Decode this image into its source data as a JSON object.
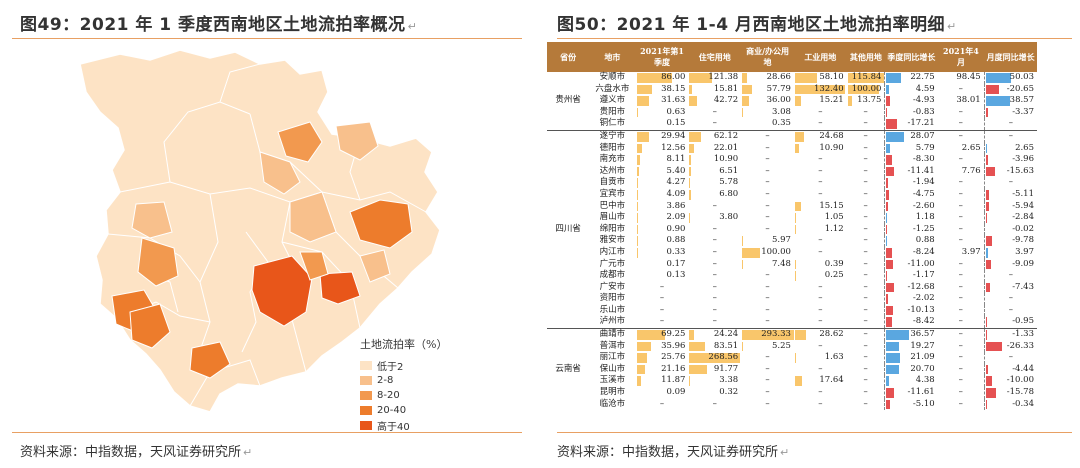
{
  "left": {
    "title": "图49：2021 年 1 季度西南地区土地流拍率概况",
    "source": "资料来源：中指数据，天风证券研究所",
    "legend_title": "土地流拍率（%）",
    "legend": [
      {
        "label": "低于2",
        "color": "#fde3c5"
      },
      {
        "label": "2-8",
        "color": "#f8c08c"
      },
      {
        "label": "8-20",
        "color": "#f2994f"
      },
      {
        "label": "20-40",
        "color": "#ed7c2c"
      },
      {
        "label": "高于40",
        "color": "#e8561a"
      }
    ]
  },
  "right": {
    "title": "图50：2021 年 1-4 月西南地区土地流拍率明细",
    "source": "资料来源：中指数据，天风证券研究所",
    "headers": [
      "省份",
      "地市",
      "2021年第1季度",
      "住宅用地",
      "商业/办公用地",
      "工业用地",
      "其他用地",
      "季度同比增长",
      "2021年4月",
      "月度同比增长"
    ],
    "groups": [
      {
        "province": "贵州省",
        "rows": [
          [
            "安顺市",
            "86.00",
            "121.38",
            "28.66",
            "58.10",
            "115.84",
            "22.75",
            "98.45",
            "50.03"
          ],
          [
            "六盘水市",
            "38.15",
            "15.81",
            "57.79",
            "132.40",
            "100.00",
            "4.59",
            "–",
            "-20.65"
          ],
          [
            "遵义市",
            "31.63",
            "42.72",
            "36.00",
            "15.21",
            "13.75",
            "-4.93",
            "38.01",
            "38.57"
          ],
          [
            "贵阳市",
            "0.63",
            "–",
            "3.08",
            "–",
            "–",
            "-0.83",
            "–",
            "-3.37"
          ],
          [
            "铜仁市",
            "0.15",
            "–",
            "0.35",
            "–",
            "–",
            "-17.21",
            "–",
            "–"
          ]
        ]
      },
      {
        "province": "四川省",
        "rows": [
          [
            "遂宁市",
            "29.94",
            "62.12",
            "–",
            "24.68",
            "–",
            "28.07",
            "–",
            "–"
          ],
          [
            "德阳市",
            "12.56",
            "22.01",
            "–",
            "10.90",
            "–",
            "5.79",
            "2.65",
            "2.65"
          ],
          [
            "南充市",
            "8.11",
            "10.90",
            "–",
            "–",
            "–",
            "-8.30",
            "–",
            "-3.96"
          ],
          [
            "达州市",
            "5.40",
            "6.51",
            "–",
            "–",
            "–",
            "-11.41",
            "7.76",
            "-15.63"
          ],
          [
            "自贡市",
            "4.27",
            "5.78",
            "–",
            "–",
            "–",
            "-1.94",
            "–",
            "–"
          ],
          [
            "宜宾市",
            "4.09",
            "6.80",
            "–",
            "–",
            "–",
            "-4.75",
            "–",
            "-5.11"
          ],
          [
            "巴中市",
            "3.86",
            "–",
            "–",
            "15.15",
            "–",
            "-2.60",
            "–",
            "-5.94"
          ],
          [
            "眉山市",
            "2.09",
            "3.80",
            "–",
            "1.05",
            "–",
            "1.18",
            "–",
            "-2.84"
          ],
          [
            "绵阳市",
            "0.90",
            "–",
            "–",
            "1.12",
            "–",
            "-1.25",
            "–",
            "-0.02"
          ],
          [
            "雅安市",
            "0.88",
            "–",
            "5.97",
            "–",
            "–",
            "0.88",
            "–",
            "-9.78"
          ],
          [
            "内江市",
            "0.33",
            "–",
            "100.00",
            "–",
            "–",
            "-8.24",
            "3.97",
            "3.97"
          ],
          [
            "广元市",
            "0.17",
            "–",
            "7.48",
            "0.39",
            "–",
            "-11.00",
            "–",
            "-9.09"
          ],
          [
            "成都市",
            "0.13",
            "–",
            "–",
            "0.25",
            "–",
            "-1.17",
            "–",
            "–"
          ],
          [
            "广安市",
            "–",
            "–",
            "–",
            "–",
            "–",
            "-12.68",
            "–",
            "-7.43"
          ],
          [
            "资阳市",
            "–",
            "–",
            "–",
            "–",
            "–",
            "-2.02",
            "–",
            "–"
          ],
          [
            "乐山市",
            "–",
            "–",
            "–",
            "–",
            "–",
            "-10.13",
            "–",
            "–"
          ],
          [
            "泸州市",
            "–",
            "–",
            "–",
            "–",
            "–",
            "-8.42",
            "–",
            "-0.95"
          ]
        ]
      },
      {
        "province": "云南省",
        "rows": [
          [
            "曲靖市",
            "69.25",
            "24.24",
            "293.33",
            "28.62",
            "–",
            "36.57",
            "–",
            "-1.33"
          ],
          [
            "普洱市",
            "35.96",
            "83.51",
            "5.25",
            "–",
            "–",
            "19.27",
            "–",
            "-26.33"
          ],
          [
            "丽江市",
            "25.76",
            "268.56",
            "–",
            "1.63",
            "–",
            "21.09",
            "–",
            "–"
          ],
          [
            "保山市",
            "21.16",
            "91.77",
            "–",
            "–",
            "–",
            "20.70",
            "–",
            "-4.44"
          ],
          [
            "玉溪市",
            "11.87",
            "3.38",
            "–",
            "17.64",
            "–",
            "4.38",
            "–",
            "-10.00"
          ],
          [
            "昆明市",
            "0.09",
            "0.32",
            "–",
            "–",
            "–",
            "-11.61",
            "–",
            "-15.78"
          ],
          [
            "临沧市",
            "–",
            "–",
            "–",
            "–",
            "–",
            "-5.10",
            "–",
            "-0.34"
          ]
        ]
      }
    ]
  }
}
